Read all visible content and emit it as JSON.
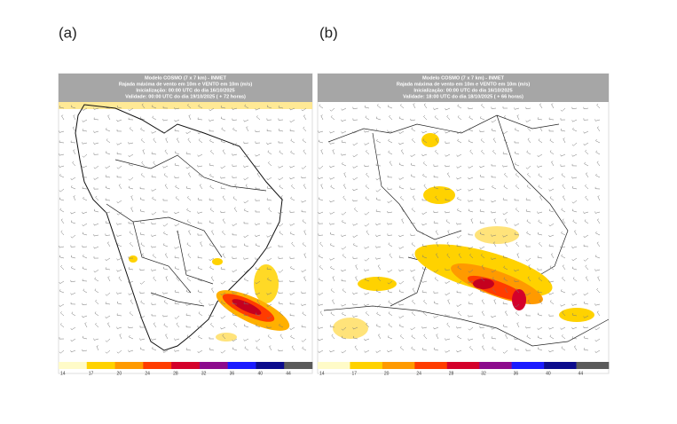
{
  "panels": [
    {
      "label": "(a)",
      "header": [
        "Modelo COSMO (7 x 7 km) - INMET",
        "Rajada máxima de vento em 10m e VENTO em 10m (m/s)",
        "Inicialização: 00:00 UTC do dia 16/10/2025",
        "Validade: 00:00 UTC do dia 19/10/2025 ( + 72 horas)"
      ],
      "colorbar_ticks": [
        14,
        17,
        20,
        24,
        28,
        32,
        36,
        40,
        44
      ]
    },
    {
      "label": "(b)",
      "header": [
        "Modelo COSMO (7 x 7 km) - INMET",
        "Rajada máxima de vento em 10m e VENTO em 10m (m/s)",
        "Inicialização: 00:00 UTC do dia 16/10/2025",
        "Validade: 18:00 UTC do dia 18/10/2025 ( + 66 horas)"
      ],
      "colorbar_ticks": [
        14,
        17,
        20,
        24,
        28,
        32,
        36,
        40,
        44
      ]
    }
  ],
  "colorbar_colors": [
    "#fffbc8",
    "#ffd200",
    "#ff9a00",
    "#ff3c00",
    "#d4002a",
    "#8c0a8c",
    "#1a1aff",
    "#0a0a8c",
    "#5a5a5a"
  ]
}
